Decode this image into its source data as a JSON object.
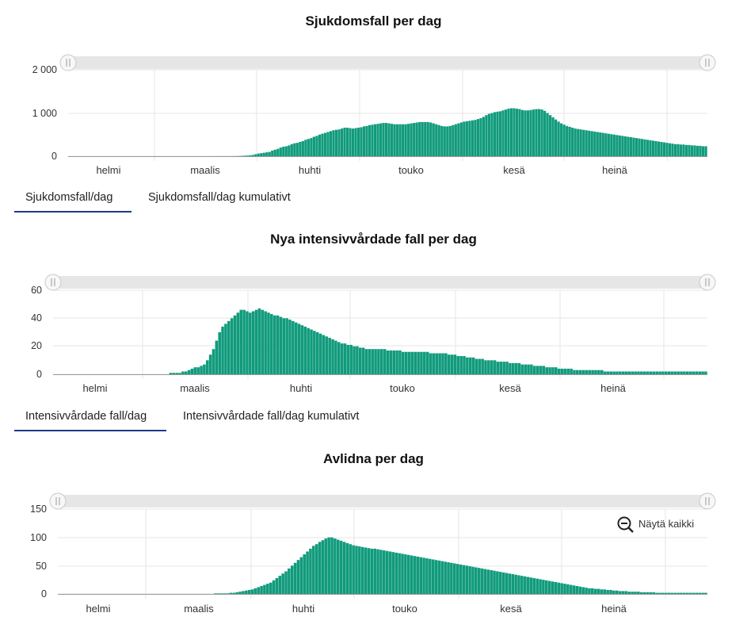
{
  "colors": {
    "bar": "#119b7c",
    "grid": "#e6e6e6",
    "axis": "#ccc",
    "tab_underline": "#1d3a8a"
  },
  "charts": [
    {
      "title": "Sjukdomsfall per dag",
      "tabs": [
        "Sjukdomsfall/dag",
        "Sjukdomsfall/dag kumulativt"
      ],
      "active_tab": 0,
      "y_ticks": [
        "2 000",
        "1 000",
        "0"
      ],
      "x_ticks": [
        "helmi",
        "maalis",
        "huhti",
        "touko",
        "kesä",
        "heinä"
      ]
    },
    {
      "title": "Nya intensivvårdade fall per dag",
      "tabs": [
        "Intensivvårdade fall/dag",
        "Intensivvårdade fall/dag kumulativt"
      ],
      "active_tab": 0,
      "y_ticks": [
        "60",
        "40",
        "20",
        "0"
      ],
      "x_ticks": [
        "helmi",
        "maalis",
        "huhti",
        "touko",
        "kesä",
        "heinä"
      ]
    },
    {
      "title": "Avlidna per dag",
      "tabs": [],
      "y_ticks": [
        "150",
        "100",
        "50",
        "0"
      ],
      "x_ticks": [
        "helmi",
        "maalis",
        "huhti",
        "touko",
        "kesä",
        "heinä"
      ],
      "reset_zoom_label": "Näytä kaikki"
    }
  ],
  "chart_data": [
    {
      "type": "bar",
      "title": "Sjukdomsfall per dag",
      "ylim": [
        0,
        2000
      ],
      "x_start": "2020-01-25",
      "x_ticks": [
        "helmi",
        "maalis",
        "huhti",
        "touko",
        "kesä",
        "heinä"
      ],
      "values": [
        0,
        0,
        0,
        0,
        0,
        0,
        0,
        0,
        0,
        0,
        0,
        0,
        0,
        0,
        0,
        0,
        0,
        0,
        0,
        0,
        0,
        0,
        0,
        0,
        0,
        0,
        0,
        0,
        0,
        0,
        0,
        0,
        0,
        0,
        0,
        0,
        0,
        0,
        0,
        0,
        0,
        0,
        0,
        0,
        0,
        0,
        0,
        0,
        0,
        0,
        0,
        0,
        0,
        1,
        1,
        1,
        1,
        1,
        1,
        2,
        3,
        5,
        8,
        12,
        15,
        20,
        30,
        45,
        60,
        70,
        80,
        90,
        100,
        130,
        150,
        170,
        200,
        220,
        230,
        250,
        280,
        300,
        310,
        330,
        350,
        380,
        400,
        420,
        450,
        470,
        500,
        520,
        540,
        560,
        580,
        600,
        610,
        620,
        640,
        660,
        660,
        650,
        640,
        650,
        660,
        670,
        690,
        700,
        720,
        730,
        740,
        750,
        760,
        770,
        770,
        760,
        750,
        740,
        740,
        740,
        740,
        740,
        750,
        760,
        770,
        780,
        790,
        790,
        790,
        790,
        780,
        760,
        740,
        720,
        700,
        690,
        690,
        700,
        720,
        740,
        760,
        780,
        800,
        810,
        820,
        830,
        840,
        860,
        880,
        910,
        950,
        980,
        1000,
        1020,
        1030,
        1040,
        1060,
        1080,
        1100,
        1110,
        1110,
        1100,
        1090,
        1070,
        1060,
        1060,
        1070,
        1080,
        1090,
        1090,
        1080,
        1050,
        1000,
        950,
        900,
        850,
        800,
        760,
        730,
        700,
        680,
        660,
        640,
        630,
        620,
        610,
        600,
        590,
        580,
        570,
        560,
        550,
        540,
        530,
        520,
        510,
        500,
        490,
        480,
        470,
        460,
        450,
        440,
        430,
        420,
        410,
        400,
        390,
        380,
        370,
        360,
        350,
        340,
        330,
        320,
        310,
        300,
        290,
        280,
        280,
        270,
        270,
        260,
        260,
        250,
        250,
        240,
        240,
        230,
        230
      ]
    },
    {
      "type": "bar",
      "title": "Nya intensivvårdade fall per dag",
      "ylim": [
        0,
        60
      ],
      "x_start": "2020-01-25",
      "x_ticks": [
        "helmi",
        "maalis",
        "huhti",
        "touko",
        "kesä",
        "heinä"
      ],
      "values": [
        0,
        0,
        0,
        0,
        0,
        0,
        0,
        0,
        0,
        0,
        0,
        0,
        0,
        0,
        0,
        0,
        0,
        0,
        0,
        0,
        0,
        0,
        0,
        0,
        0,
        0,
        0,
        0,
        0,
        0,
        0,
        0,
        0,
        0,
        0,
        0,
        0,
        0,
        1,
        1,
        1,
        1,
        2,
        2,
        3,
        4,
        5,
        5,
        6,
        7,
        10,
        14,
        18,
        24,
        30,
        34,
        36,
        38,
        40,
        42,
        44,
        46,
        46,
        45,
        44,
        45,
        46,
        47,
        46,
        45,
        44,
        43,
        42,
        42,
        41,
        40,
        40,
        39,
        38,
        37,
        36,
        35,
        34,
        33,
        32,
        31,
        30,
        29,
        28,
        27,
        26,
        25,
        24,
        23,
        22,
        22,
        21,
        21,
        20,
        20,
        19,
        19,
        18,
        18,
        18,
        18,
        18,
        18,
        18,
        17,
        17,
        17,
        17,
        17,
        16,
        16,
        16,
        16,
        16,
        16,
        16,
        16,
        16,
        15,
        15,
        15,
        15,
        15,
        15,
        14,
        14,
        14,
        13,
        13,
        13,
        12,
        12,
        12,
        11,
        11,
        11,
        10,
        10,
        10,
        10,
        9,
        9,
        9,
        9,
        8,
        8,
        8,
        8,
        7,
        7,
        7,
        7,
        6,
        6,
        6,
        6,
        5,
        5,
        5,
        5,
        4,
        4,
        4,
        4,
        4,
        3,
        3,
        3,
        3,
        3,
        3,
        3,
        3,
        3,
        3,
        2,
        2,
        2,
        2,
        2,
        2,
        2,
        2,
        2,
        2,
        2,
        2,
        2,
        2,
        2,
        2,
        2,
        2,
        2,
        2,
        2,
        2,
        2,
        2,
        2,
        2,
        2,
        2,
        2,
        2,
        2,
        2,
        2,
        2
      ]
    },
    {
      "type": "bar",
      "title": "Avlidna per dag",
      "ylim": [
        0,
        150
      ],
      "x_start": "2020-01-25",
      "x_ticks": [
        "helmi",
        "maalis",
        "huhti",
        "touko",
        "kesä",
        "heinä"
      ],
      "values": [
        0,
        0,
        0,
        0,
        0,
        0,
        0,
        0,
        0,
        0,
        0,
        0,
        0,
        0,
        0,
        0,
        0,
        0,
        0,
        0,
        0,
        0,
        0,
        0,
        0,
        0,
        0,
        0,
        0,
        0,
        0,
        0,
        0,
        0,
        0,
        0,
        0,
        0,
        0,
        0,
        0,
        0,
        0,
        0,
        0,
        0,
        0,
        0,
        0,
        0,
        0,
        1,
        1,
        1,
        1,
        1,
        2,
        2,
        3,
        4,
        5,
        6,
        7,
        8,
        10,
        12,
        14,
        16,
        18,
        20,
        24,
        28,
        32,
        36,
        40,
        45,
        50,
        55,
        60,
        65,
        70,
        75,
        80,
        85,
        88,
        92,
        95,
        98,
        100,
        100,
        98,
        96,
        94,
        92,
        90,
        88,
        86,
        85,
        84,
        83,
        82,
        81,
        80,
        80,
        79,
        78,
        77,
        76,
        75,
        74,
        73,
        72,
        71,
        70,
        69,
        68,
        67,
        66,
        65,
        64,
        63,
        62,
        61,
        60,
        59,
        58,
        57,
        56,
        55,
        54,
        53,
        52,
        51,
        50,
        49,
        48,
        47,
        46,
        45,
        44,
        43,
        42,
        41,
        40,
        39,
        38,
        37,
        36,
        35,
        34,
        33,
        32,
        31,
        30,
        29,
        28,
        27,
        26,
        25,
        24,
        23,
        22,
        21,
        20,
        19,
        18,
        17,
        16,
        15,
        14,
        13,
        12,
        11,
        10,
        10,
        9,
        9,
        8,
        8,
        7,
        7,
        6,
        6,
        5,
        5,
        5,
        4,
        4,
        4,
        4,
        3,
        3,
        3,
        3,
        3,
        2,
        2,
        2,
        2,
        2,
        2,
        2,
        2,
        2,
        2,
        2,
        2,
        2,
        2,
        2,
        2,
        2
      ]
    }
  ]
}
